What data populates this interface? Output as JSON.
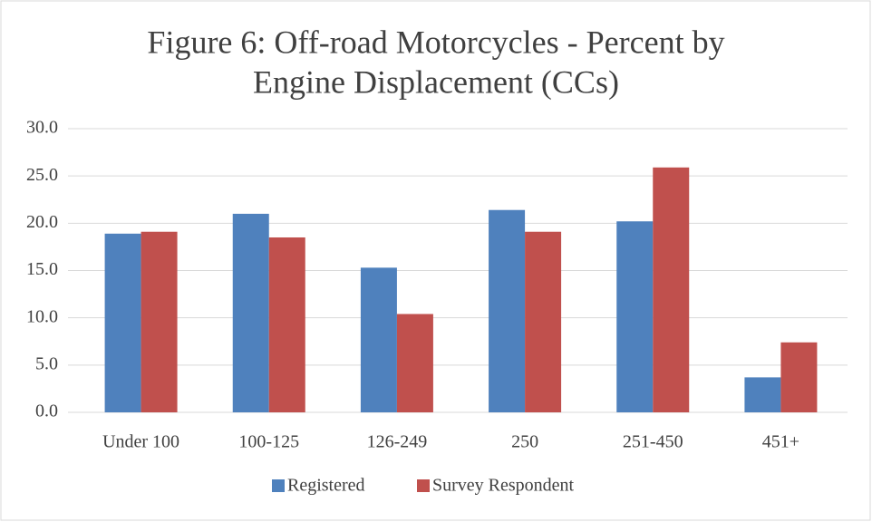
{
  "chart_data": {
    "type": "bar",
    "title": [
      "Figure 6: Off-road Motorcycles - Percent by",
      "Engine Displacement (CCs)"
    ],
    "categories": [
      "Under 100",
      "100-125",
      "126-249",
      "250",
      "251-450",
      "451+"
    ],
    "series": [
      {
        "name": "Registered",
        "color": "#4f81bd",
        "values": [
          18.9,
          21.0,
          15.3,
          21.4,
          20.2,
          3.7
        ]
      },
      {
        "name": "Survey Respondent",
        "color": "#c0504d",
        "values": [
          19.1,
          18.5,
          10.4,
          19.1,
          25.9,
          7.4
        ]
      }
    ],
    "ylim": [
      0,
      30
    ],
    "yticks": [
      {
        "value": 0,
        "label": "0.0"
      },
      {
        "value": 5,
        "label": "5.0"
      },
      {
        "value": 10,
        "label": "10.0"
      },
      {
        "value": 15,
        "label": "15.0"
      },
      {
        "value": 20,
        "label": "20.0"
      },
      {
        "value": 25,
        "label": "25.0"
      },
      {
        "value": 30,
        "label": "30.0"
      }
    ],
    "grid": true,
    "legend": "bottom"
  }
}
